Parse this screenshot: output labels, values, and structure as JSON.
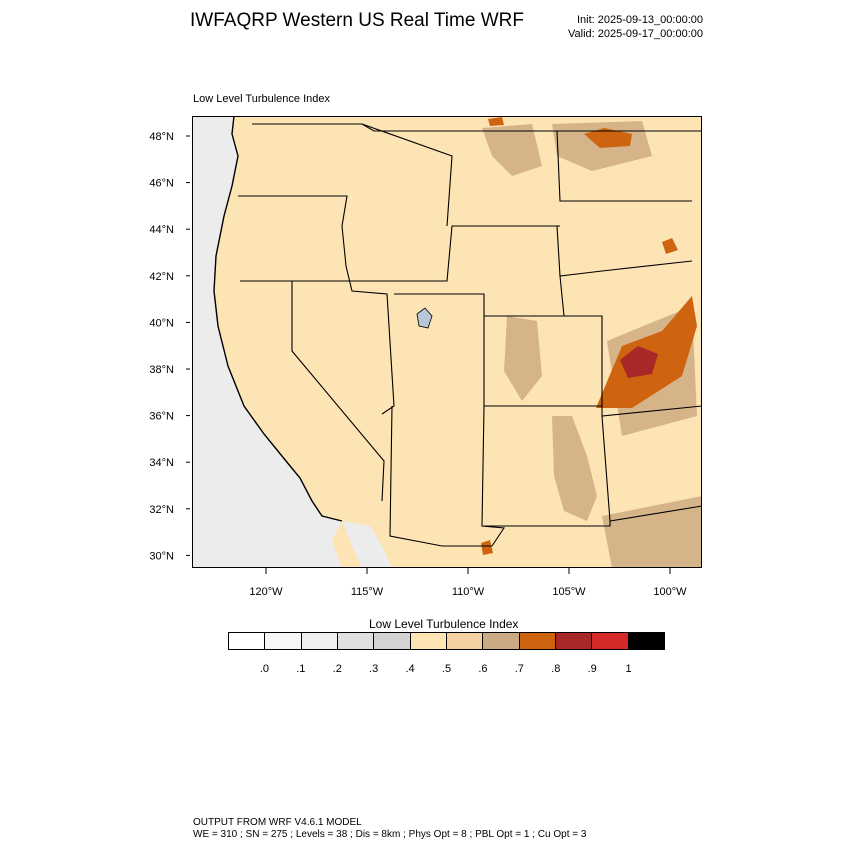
{
  "header": {
    "title": "IWFAQRP Western US Real Time WRF",
    "init": "Init: 2025-09-13_00:00:00",
    "valid": "Valid: 2025-09-17_00:00:00"
  },
  "map": {
    "subtitle": "Low Level Turbulence Index",
    "lat_labels": [
      "48°N",
      "46°N",
      "44°N",
      "42°N",
      "40°N",
      "38°N",
      "36°N",
      "34°N",
      "32°N",
      "30°N"
    ],
    "lon_labels": [
      "120°W",
      "115°W",
      "110°W",
      "105°W",
      "100°W"
    ],
    "colors": {
      "ocean": "#ececec",
      "land": "#fde4b4",
      "tan": "#d6b48a",
      "orange": "#cf6410",
      "darkred": "#a82828"
    }
  },
  "colorbar": {
    "title": "Low Level Turbulence Index",
    "colors": [
      "#ffffff",
      "#f7f7f7",
      "#efefef",
      "#e0e0e0",
      "#d3d3d3",
      "#fde4b4",
      "#f5d0a0",
      "#ccaa84",
      "#cf6410",
      "#a82828",
      "#d42a2a",
      "#000000"
    ],
    "ticks": [
      ".0",
      ".1",
      ".2",
      ".3",
      ".4",
      ".5",
      ".6",
      ".7",
      ".8",
      ".9",
      "1"
    ]
  },
  "footer": {
    "line1": "OUTPUT FROM WRF V4.6.1 MODEL",
    "line2": "WE = 310 ; SN = 275 ; Levels = 38 ; Dis = 8km ; Phys Opt = 8 ; PBL Opt = 1 ; Cu Opt = 3"
  }
}
